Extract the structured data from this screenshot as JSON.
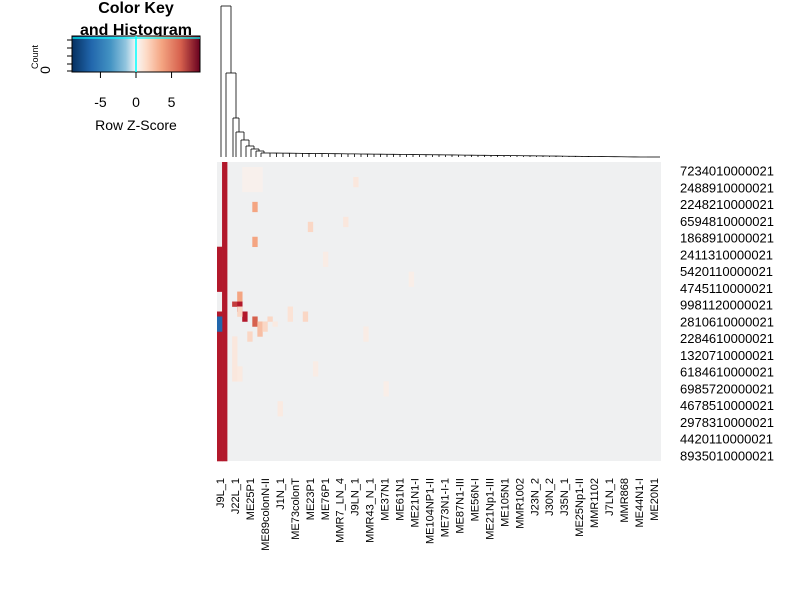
{
  "chart_data": {
    "type": "heatmap",
    "color_key": {
      "title_line1": "Color Key",
      "title_line2": "and Histogram",
      "ylabel": "Count",
      "y_tick": "0",
      "xlabel": "Row Z-Score",
      "x_ticks": [
        "-5",
        "0",
        "5"
      ],
      "x_tick_values": [
        -5,
        0,
        5
      ],
      "range": [
        -9,
        9
      ],
      "colors": {
        "low": "#2166ac",
        "mid": "#f7f7f7",
        "high": "#b2182b",
        "histogram_line": "#00ffff"
      }
    },
    "row_labels": [
      "7234010000021",
      "2488910000021",
      "2248210000021",
      "6594810000021",
      "1868910000021",
      "2411310000021",
      "5420110000021",
      "4745110000021",
      "9981120000021",
      "2810610000021",
      "2284610000021",
      "1320710000021",
      "6184610000021",
      "6985720000021",
      "4678510000021",
      "2978310000021",
      "4420110000021",
      "8935010000021"
    ],
    "column_labels": [
      "J9L_1",
      "J22L_1",
      "ME25P1",
      "ME89colonN-II",
      "J1N_1",
      "ME73colonT",
      "ME23P1",
      "ME76P1",
      "MMR7_LN_4",
      "J9LN_1",
      "MMR43_N_1",
      "ME37N1",
      "ME61N1",
      "ME21N1-I",
      "ME104NP1-II",
      "ME73N1-I-1",
      "ME87N1-III",
      "ME56N-I",
      "ME21Np1-III",
      "ME105N1",
      "MMR1002",
      "J23N_2",
      "J30N_2",
      "J35N_1",
      "ME25Np1-II",
      "MMR1102",
      "J7LN_1",
      "MMR868",
      "ME44N1-I",
      "ME20N1"
    ],
    "n_rows": 60,
    "n_cols": 88,
    "baseline_z": -0.1,
    "cells": [
      {
        "rows": [
          0,
          59
        ],
        "cols": [
          1,
          1
        ],
        "z": 9
      },
      {
        "rows": [
          30,
          59
        ],
        "cols": [
          0,
          0
        ],
        "z": 9
      },
      {
        "rows": [
          17,
          25
        ],
        "cols": [
          0,
          0
        ],
        "z": 9
      },
      {
        "rows": [
          31,
          33
        ],
        "cols": [
          0,
          0
        ],
        "z": -9
      },
      {
        "rows": [
          28,
          28
        ],
        "cols": [
          3,
          3
        ],
        "z": 8
      },
      {
        "rows": [
          26,
          27
        ],
        "cols": [
          4,
          4
        ],
        "z": 4
      },
      {
        "rows": [
          28,
          29
        ],
        "cols": [
          4,
          4
        ],
        "z": 9
      },
      {
        "rows": [
          30,
          31
        ],
        "cols": [
          5,
          5
        ],
        "z": 9
      },
      {
        "rows": [
          29,
          30
        ],
        "cols": [
          4,
          4
        ],
        "z": 2
      },
      {
        "rows": [
          31,
          32
        ],
        "cols": [
          7,
          7
        ],
        "z": 7
      },
      {
        "rows": [
          32,
          34
        ],
        "cols": [
          8,
          8
        ],
        "z": 3
      },
      {
        "rows": [
          34,
          35
        ],
        "cols": [
          6,
          6
        ],
        "z": 2
      },
      {
        "rows": [
          32,
          33
        ],
        "cols": [
          9,
          9
        ],
        "z": 2
      },
      {
        "rows": [
          31,
          31
        ],
        "cols": [
          10,
          10
        ],
        "z": 2
      },
      {
        "rows": [
          32,
          32
        ],
        "cols": [
          11,
          11
        ],
        "z": 1
      },
      {
        "rows": [
          29,
          31
        ],
        "cols": [
          14,
          14
        ],
        "z": 1.5
      },
      {
        "rows": [
          30,
          31
        ],
        "cols": [
          17,
          17
        ],
        "z": 2
      },
      {
        "rows": [
          8,
          9
        ],
        "cols": [
          7,
          7
        ],
        "z": 4
      },
      {
        "rows": [
          15,
          16
        ],
        "cols": [
          7,
          7
        ],
        "z": 4
      },
      {
        "rows": [
          1,
          5
        ],
        "cols": [
          5,
          8
        ],
        "z": 0.5
      },
      {
        "rows": [
          12,
          13
        ],
        "cols": [
          18,
          18
        ],
        "z": 2
      },
      {
        "rows": [
          11,
          12
        ],
        "cols": [
          25,
          25
        ],
        "z": 1.2
      },
      {
        "rows": [
          3,
          4
        ],
        "cols": [
          27,
          27
        ],
        "z": 1.2
      },
      {
        "rows": [
          35,
          43
        ],
        "cols": [
          3,
          3
        ],
        "z": 1.2
      },
      {
        "rows": [
          41,
          43
        ],
        "cols": [
          4,
          4
        ],
        "z": 1.0
      },
      {
        "rows": [
          48,
          50
        ],
        "cols": [
          12,
          12
        ],
        "z": 1.0
      },
      {
        "rows": [
          40,
          42
        ],
        "cols": [
          19,
          19
        ],
        "z": 0.8
      },
      {
        "rows": [
          33,
          35
        ],
        "cols": [
          29,
          29
        ],
        "z": 0.8
      },
      {
        "rows": [
          18,
          20
        ],
        "cols": [
          21,
          21
        ],
        "z": 0.8
      },
      {
        "rows": [
          44,
          46
        ],
        "cols": [
          33,
          33
        ],
        "z": 0.7
      },
      {
        "rows": [
          22,
          24
        ],
        "cols": [
          38,
          38
        ],
        "z": 0.7
      }
    ]
  }
}
